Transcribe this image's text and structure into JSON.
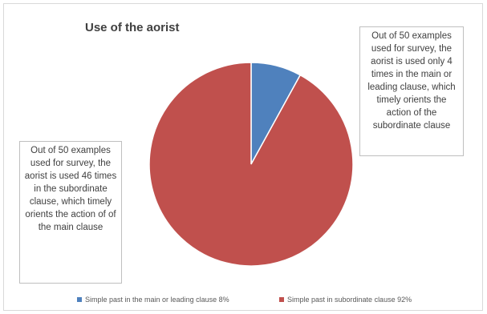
{
  "chart_data": {
    "type": "pie",
    "title": "Use of the aorist",
    "categories": [
      "Simple past in the main or leading clause",
      "Simple past in subordinate clause"
    ],
    "values": [
      8,
      92
    ],
    "colors": [
      "#4f81bd",
      "#c0504d"
    ],
    "legend": {
      "placement": "bottom",
      "entries": [
        "Simple past in the main or leading clause 8%",
        "Simple past in subordinate clause 92%"
      ]
    },
    "annotations": [
      "Out of 50  examples used for survey, the aorist is used only 4 times in the main or leading clause, which timely orients the action of the subordinate clause",
      "Out of 50 examples used for survey, the aorist is used 46 times in the subordinate clause, which timely orients the action of of the main clause"
    ]
  }
}
